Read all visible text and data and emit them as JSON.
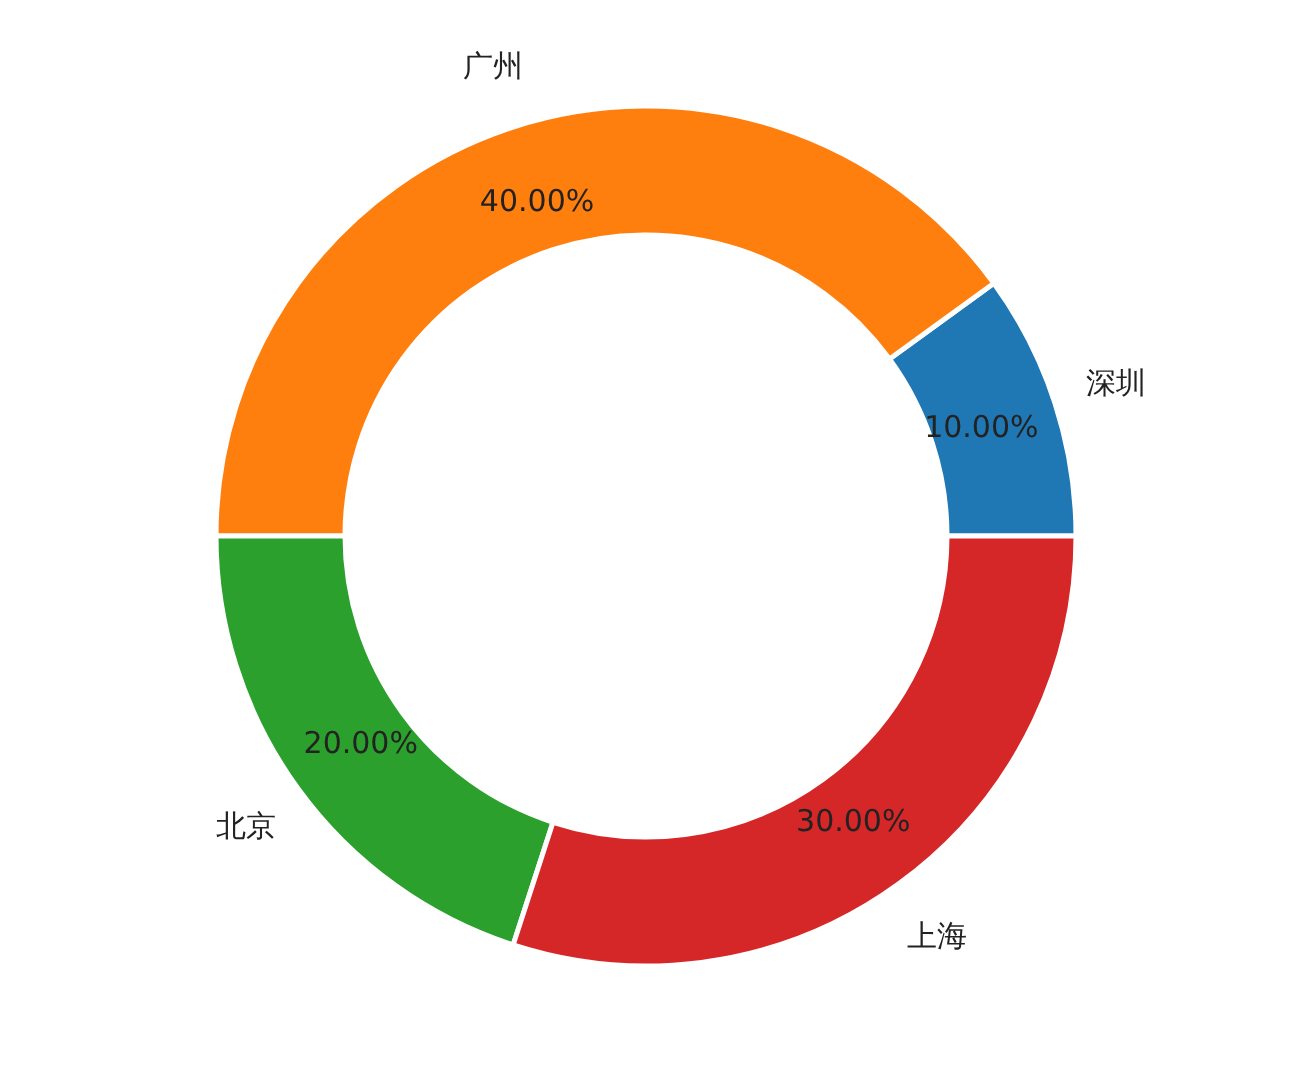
{
  "chart_data": {
    "type": "donut",
    "categories": [
      "深圳",
      "广州",
      "北京",
      "上海"
    ],
    "values": [
      10,
      40,
      20,
      30
    ],
    "colors": [
      "#1f77b4",
      "#ff7f0e",
      "#2ca02c",
      "#d62728"
    ],
    "value_labels": [
      "10.00%",
      "40.00%",
      "20.00%",
      "30.00%"
    ]
  }
}
